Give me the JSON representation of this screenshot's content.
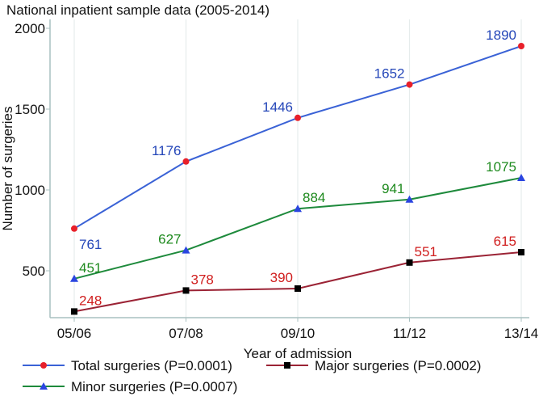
{
  "chart_data": {
    "type": "line",
    "title": "National inpatient sample data (2005-2014)",
    "xlabel": "Year of admission",
    "ylabel": "Number of surgeries",
    "categories": [
      "05/06",
      "07/08",
      "09/10",
      "11/12",
      "13/14"
    ],
    "yticks": [
      500,
      1000,
      1500,
      2000
    ],
    "ylim": [
      0,
      2000
    ],
    "grid": "vertical",
    "legend_position": "bottom",
    "series": [
      {
        "name": "Total surgeries (P=0.0001)",
        "values": [
          761,
          1176,
          1446,
          1652,
          1890
        ],
        "line_color": "#3a62d6",
        "marker": "circle",
        "marker_color": "#e8202a",
        "label_color": "#2446b8",
        "label_pos": [
          "br",
          "tl",
          "tl",
          "tl",
          "tl"
        ]
      },
      {
        "name": "Minor surgeries (P=0.0007)",
        "values": [
          451,
          627,
          884,
          941,
          1075
        ],
        "line_color": "#1e8a3c",
        "marker": "triangle",
        "marker_color": "#2a45e0",
        "label_color": "#1e8a1e",
        "label_pos": [
          "tr",
          "tl",
          "tr",
          "tl",
          "tl"
        ]
      },
      {
        "name": "Major surgeries (P=0.0002)",
        "values": [
          248,
          378,
          390,
          551,
          615
        ],
        "line_color": "#9b2335",
        "marker": "square",
        "marker_color": "#000000",
        "label_color": "#d01e1e",
        "label_pos": [
          "tr",
          "tr",
          "tl",
          "tr",
          "tl"
        ]
      }
    ]
  }
}
